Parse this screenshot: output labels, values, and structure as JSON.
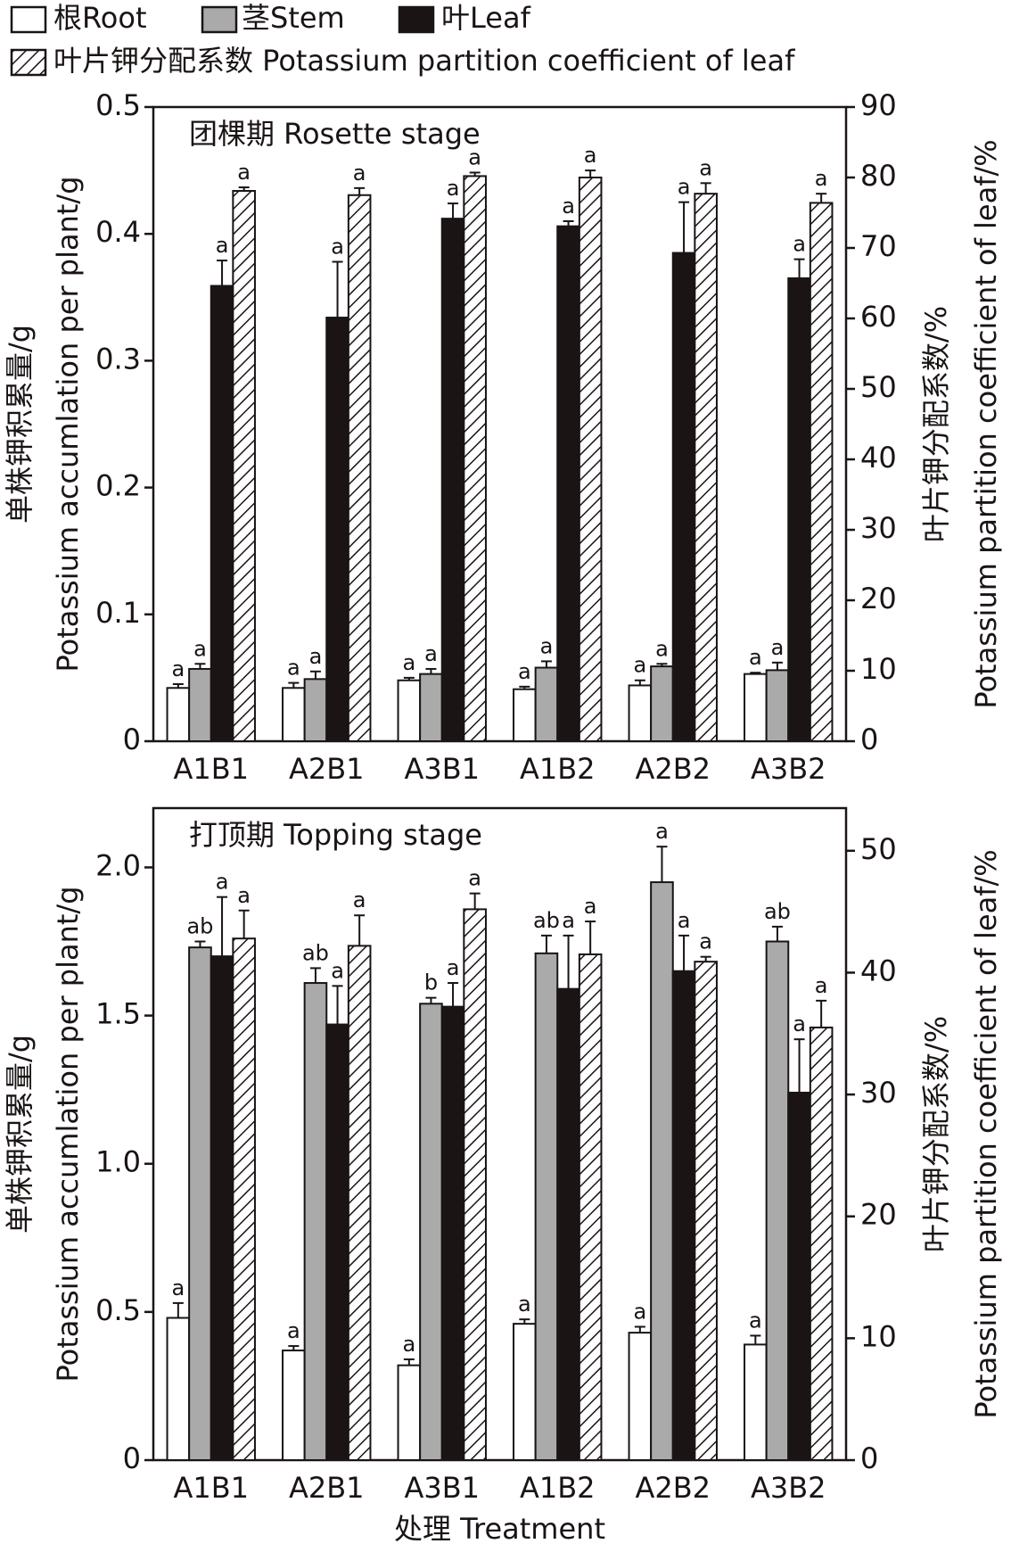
{
  "chart_data": [
    {
      "type": "bar",
      "annotation": "团棵期 Rosette stage",
      "y_label": [
        "单株钾积累量/g",
        "Potassium accumlation per plant/g"
      ],
      "y2_label": [
        "叶片钾分配系数/%",
        "Potassium partition coefficient of leaf/%"
      ],
      "categories": [
        "A1B1",
        "A2B1",
        "A3B1",
        "A1B2",
        "A2B2",
        "A3B2"
      ],
      "ylim": [
        0,
        0.5
      ],
      "yticks": [
        0,
        0.1,
        0.2,
        0.3,
        0.4,
        0.5
      ],
      "y2lim": [
        0,
        90
      ],
      "y2ticks": [
        0,
        10,
        20,
        30,
        40,
        50,
        60,
        70,
        80,
        90
      ],
      "series": [
        {
          "name": "根Root",
          "color": "#ffffff",
          "values": [
            0.042,
            0.042,
            0.048,
            0.041,
            0.044,
            0.053
          ],
          "errors": [
            0.003,
            0.004,
            0.002,
            0.002,
            0.004,
            0.001
          ],
          "letters": [
            "a",
            "a",
            "a",
            "a",
            "a",
            "a"
          ]
        },
        {
          "name": "茎Stem",
          "color": "#aaaaaa",
          "values": [
            0.057,
            0.049,
            0.053,
            0.058,
            0.059,
            0.056
          ],
          "errors": [
            0.004,
            0.006,
            0.004,
            0.005,
            0.002,
            0.006
          ],
          "letters": [
            "a",
            "a",
            "a",
            "a",
            "a",
            "a"
          ]
        },
        {
          "name": "叶Leaf",
          "color": "#1a1414",
          "values": [
            0.359,
            0.334,
            0.412,
            0.406,
            0.385,
            0.365
          ],
          "errors": [
            0.02,
            0.044,
            0.012,
            0.004,
            0.04,
            0.015
          ],
          "letters": [
            "a",
            "a",
            "a",
            "a",
            "a",
            "a"
          ]
        },
        {
          "name": "叶片钾分配系数 Potassium partition coefficient of leaf",
          "color": "#ffffff",
          "hatch": true,
          "axis": "y2",
          "values": [
            78.1,
            77.5,
            80.2,
            80.0,
            77.7,
            76.4
          ],
          "errors": [
            0.5,
            1,
            0.5,
            1,
            1.5,
            1.3
          ],
          "letters": [
            "a",
            "a",
            "a",
            "a",
            "a",
            "a"
          ]
        }
      ]
    },
    {
      "type": "bar",
      "annotation": "打顶期 Topping stage",
      "x_label": "处理 Treatment",
      "y_label": [
        "单株钾积累量/g",
        "Potassium accumlation per plant/g"
      ],
      "y2_label": [
        "叶片钾分配系数/%",
        "Potassium partition coefficient of leaf/%"
      ],
      "categories": [
        "A1B1",
        "A2B1",
        "A3B1",
        "A1B2",
        "A2B2",
        "A3B2"
      ],
      "ylim": [
        0,
        2.2
      ],
      "yticks": [
        0,
        0.5,
        {
          "value": 1,
          "label": "1.0"
        },
        1.5,
        {
          "value": 2,
          "label": "2.0"
        }
      ],
      "y2lim": [
        0,
        53.5
      ],
      "y2ticks": [
        0,
        10,
        20,
        30,
        40,
        50
      ],
      "series": [
        {
          "color": "#ffffff",
          "values": [
            0.48,
            0.37,
            0.32,
            0.46,
            0.43,
            0.39
          ],
          "errors": [
            0.05,
            0.015,
            0.02,
            0.015,
            0.02,
            0.03
          ],
          "letters": [
            "a",
            "a",
            "a",
            "a",
            "a",
            "a"
          ]
        },
        {
          "color": "#aaaaaa",
          "values": [
            1.73,
            1.61,
            1.54,
            1.71,
            1.95,
            1.75
          ],
          "errors": [
            0.02,
            0.05,
            0.02,
            0.06,
            0.12,
            0.05
          ],
          "letters": [
            "ab",
            "ab",
            "b",
            "ab",
            "a",
            "ab"
          ]
        },
        {
          "color": "#1a1414",
          "values": [
            1.7,
            1.47,
            1.53,
            1.59,
            1.65,
            1.24
          ],
          "errors": [
            0.2,
            0.13,
            0.08,
            0.18,
            0.12,
            0.18
          ],
          "letters": [
            "a",
            "a",
            "a",
            "a",
            "a",
            "a"
          ]
        },
        {
          "color": "#ffffff",
          "hatch": true,
          "axis": "y2",
          "values": [
            42.8,
            42.2,
            45.2,
            41.5,
            40.9,
            35.5
          ],
          "errors": [
            2.3,
            2.5,
            1.3,
            2.7,
            0.4,
            2.2
          ],
          "letters": [
            "a",
            "a",
            "a",
            "a",
            "a",
            "a"
          ]
        }
      ]
    }
  ]
}
